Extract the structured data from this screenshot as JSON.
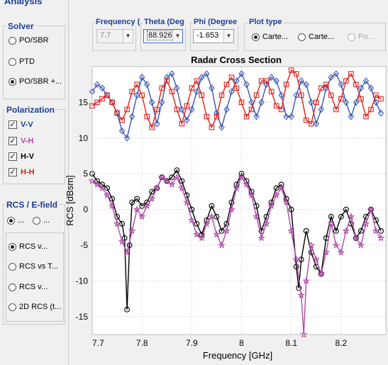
{
  "analysis": {
    "title": "Analysis"
  },
  "solver": {
    "title": "Solver",
    "options": [
      {
        "label": "PO/SBR",
        "selected": false
      },
      {
        "label": "PTD",
        "selected": false
      },
      {
        "label": "PO/SBR +...",
        "selected": true
      }
    ]
  },
  "polarization": {
    "title": "Polarization",
    "items": [
      {
        "label": "V-V",
        "checked": true,
        "color": "#1c3f94"
      },
      {
        "label": "V-H",
        "checked": true,
        "color": "#b04aa8"
      },
      {
        "label": "H-V",
        "checked": true,
        "color": "#000000"
      },
      {
        "label": "H-H",
        "checked": true,
        "color": "#e0201b"
      }
    ]
  },
  "rcs_efield": {
    "title": "RCS / E-field",
    "top_options": [
      {
        "label": "...",
        "selected": true
      },
      {
        "label": "...",
        "selected": false
      }
    ],
    "options": [
      {
        "label": "RCS v...",
        "selected": true
      },
      {
        "label": "RCS vs T...",
        "selected": false
      },
      {
        "label": "RCS v...",
        "selected": false
      },
      {
        "label": "2D RCS (t...",
        "selected": false
      }
    ]
  },
  "params": {
    "frequency": {
      "label": "Frequency (",
      "value": "7.7",
      "disabled": true
    },
    "theta": {
      "label": "Theta (Deg",
      "value": "88.926"
    },
    "phi": {
      "label": "Phi (Degree",
      "value": "-1.653"
    }
  },
  "plot_type": {
    "title": "Plot type",
    "options": [
      {
        "label": "Carte...",
        "selected": true
      },
      {
        "label": "Carte...",
        "selected": false
      },
      {
        "label": "Po...",
        "selected": false,
        "disabled": true
      }
    ]
  },
  "chart_data": {
    "type": "line",
    "title": "Radar Cross Section",
    "xlabel": "Frequency [GHz]",
    "ylabel": "RCS [dBsm]",
    "xlim": [
      7.7,
      8.29
    ],
    "ylim": [
      -17.5,
      20
    ],
    "xticks": [
      7.7,
      7.8,
      7.9,
      8.0,
      8.1,
      8.2
    ],
    "xtick_labels": [
      "7.7",
      "7.8",
      "7.9",
      "8",
      "8.1",
      "8.2"
    ],
    "yticks": [
      -15,
      -10,
      -5,
      0,
      5,
      10,
      15
    ],
    "ytick_labels": [
      "-15",
      "-10",
      "-5",
      "0",
      "5",
      "10",
      "15"
    ],
    "grid": true,
    "series": [
      {
        "name": "V-V",
        "color": "#3a55b4",
        "marker": "diamond",
        "x": [
          7.7,
          7.71,
          7.72,
          7.73,
          7.74,
          7.75,
          7.76,
          7.77,
          7.78,
          7.79,
          7.8,
          7.81,
          7.82,
          7.83,
          7.84,
          7.85,
          7.86,
          7.87,
          7.88,
          7.89,
          7.9,
          7.91,
          7.92,
          7.93,
          7.94,
          7.95,
          7.96,
          7.97,
          7.98,
          7.99,
          8.0,
          8.01,
          8.02,
          8.03,
          8.04,
          8.05,
          8.06,
          8.07,
          8.08,
          8.09,
          8.1,
          8.11,
          8.12,
          8.13,
          8.14,
          8.15,
          8.16,
          8.17,
          8.18,
          8.19,
          8.2,
          8.21,
          8.22,
          8.23,
          8.24,
          8.25,
          8.26,
          8.27,
          8.28
        ],
        "y": [
          16.5,
          17.5,
          17.0,
          16.0,
          15.0,
          13.5,
          11.0,
          10.0,
          13.0,
          16.0,
          18.5,
          17.5,
          15.0,
          12.0,
          15.0,
          18.5,
          19.0,
          17.0,
          14.0,
          12.5,
          14.0,
          16.5,
          18.5,
          19.0,
          17.0,
          13.5,
          11.5,
          14.0,
          16.5,
          18.0,
          19.0,
          17.5,
          15.0,
          13.0,
          15.0,
          17.5,
          18.5,
          18.0,
          16.0,
          13.0,
          13.0,
          16.0,
          18.0,
          17.5,
          15.0,
          12.0,
          14.0,
          17.0,
          18.5,
          19.0,
          17.5,
          15.0,
          13.0,
          15.0,
          17.0,
          18.0,
          17.0,
          15.0,
          13.5
        ]
      },
      {
        "name": "H-H",
        "color": "#e0201b",
        "marker": "square",
        "x": [
          7.7,
          7.71,
          7.72,
          7.73,
          7.74,
          7.75,
          7.76,
          7.77,
          7.78,
          7.79,
          7.8,
          7.81,
          7.82,
          7.83,
          7.84,
          7.85,
          7.86,
          7.87,
          7.88,
          7.89,
          7.9,
          7.91,
          7.92,
          7.93,
          7.94,
          7.95,
          7.96,
          7.97,
          7.98,
          7.99,
          8.0,
          8.01,
          8.02,
          8.03,
          8.04,
          8.05,
          8.06,
          8.07,
          8.08,
          8.09,
          8.1,
          8.11,
          8.12,
          8.13,
          8.14,
          8.15,
          8.16,
          8.17,
          8.18,
          8.19,
          8.2,
          8.21,
          8.22,
          8.23,
          8.24,
          8.25,
          8.26,
          8.27,
          8.28
        ],
        "y": [
          14.5,
          15.0,
          15.5,
          16.0,
          15.0,
          13.5,
          12.5,
          14.0,
          16.5,
          17.5,
          16.0,
          13.0,
          11.5,
          14.0,
          17.0,
          18.0,
          16.5,
          14.0,
          12.0,
          14.5,
          17.0,
          18.0,
          16.0,
          13.0,
          11.5,
          13.0,
          16.0,
          17.5,
          18.5,
          17.0,
          15.0,
          13.0,
          14.0,
          16.0,
          18.0,
          18.0,
          16.5,
          14.5,
          14.0,
          17.5,
          19.5,
          19.0,
          16.0,
          12.5,
          12.0,
          15.0,
          17.0,
          17.5,
          16.0,
          14.0,
          15.5,
          18.0,
          19.0,
          17.5,
          15.5,
          13.0,
          14.0,
          16.0,
          15.5
        ]
      },
      {
        "name": "H-V",
        "color": "#000000",
        "marker": "circle",
        "x": [
          7.7,
          7.71,
          7.72,
          7.73,
          7.74,
          7.75,
          7.76,
          7.765,
          7.77,
          7.775,
          7.78,
          7.79,
          7.8,
          7.81,
          7.82,
          7.83,
          7.84,
          7.85,
          7.86,
          7.87,
          7.88,
          7.89,
          7.9,
          7.91,
          7.92,
          7.93,
          7.94,
          7.95,
          7.96,
          7.97,
          7.98,
          7.99,
          8.0,
          8.01,
          8.02,
          8.03,
          8.04,
          8.05,
          8.06,
          8.07,
          8.08,
          8.09,
          8.1,
          8.11,
          8.115,
          8.12,
          8.13,
          8.14,
          8.15,
          8.16,
          8.17,
          8.18,
          8.19,
          8.2,
          8.21,
          8.22,
          8.23,
          8.24,
          8.25,
          8.26,
          8.27,
          8.28
        ],
        "y": [
          5.0,
          4.0,
          3.5,
          3.0,
          1.5,
          -1.0,
          -2.0,
          -4.0,
          -14.0,
          -5.0,
          1.0,
          1.5,
          0.5,
          1.0,
          2.5,
          3.0,
          4.5,
          4.0,
          4.5,
          5.5,
          4.0,
          2.0,
          0.0,
          -2.0,
          -3.5,
          -1.5,
          0.5,
          -1.0,
          -3.0,
          -2.0,
          1.0,
          3.5,
          5.0,
          4.0,
          2.5,
          0.5,
          -3.0,
          -1.0,
          1.0,
          3.0,
          3.5,
          1.5,
          0.0,
          -8.0,
          -11.0,
          -7.0,
          -3.0,
          -6.0,
          -8.0,
          -9.0,
          -4.0,
          -1.0,
          -3.0,
          -1.0,
          0.0,
          -2.0,
          -4.0,
          -3.0,
          -1.0,
          0.0,
          -1.5,
          -3.0
        ]
      },
      {
        "name": "V-H",
        "color": "#b04aa8",
        "marker": "star",
        "x": [
          7.7,
          7.71,
          7.72,
          7.73,
          7.74,
          7.75,
          7.76,
          7.77,
          7.78,
          7.79,
          7.8,
          7.81,
          7.82,
          7.83,
          7.84,
          7.85,
          7.86,
          7.87,
          7.88,
          7.89,
          7.9,
          7.91,
          7.92,
          7.93,
          7.94,
          7.95,
          7.96,
          7.97,
          7.98,
          7.99,
          8.0,
          8.01,
          8.02,
          8.03,
          8.04,
          8.05,
          8.06,
          8.07,
          8.08,
          8.09,
          8.1,
          8.11,
          8.12,
          8.125,
          8.13,
          8.14,
          8.15,
          8.16,
          8.17,
          8.18,
          8.19,
          8.2,
          8.21,
          8.22,
          8.23,
          8.24,
          8.25,
          8.26,
          8.27,
          8.28
        ],
        "y": [
          4.0,
          3.5,
          3.0,
          2.0,
          0.5,
          -2.0,
          -4.5,
          -6.0,
          -3.0,
          0.0,
          -1.0,
          0.5,
          1.5,
          3.0,
          4.5,
          4.0,
          3.5,
          4.5,
          3.0,
          1.0,
          -1.5,
          -3.5,
          -4.0,
          -2.0,
          -1.0,
          -3.5,
          -5.0,
          -3.0,
          0.0,
          3.0,
          4.5,
          3.5,
          2.0,
          -1.0,
          -4.0,
          -2.0,
          0.5,
          2.0,
          3.0,
          1.0,
          -3.0,
          -7.0,
          -12.0,
          -17.5,
          -10.0,
          -5.0,
          -7.0,
          -9.0,
          -6.0,
          -2.0,
          -5.0,
          -6.0,
          -3.0,
          -1.0,
          -4.0,
          -5.0,
          -2.0,
          0.0,
          -3.0,
          -4.0
        ]
      }
    ]
  }
}
